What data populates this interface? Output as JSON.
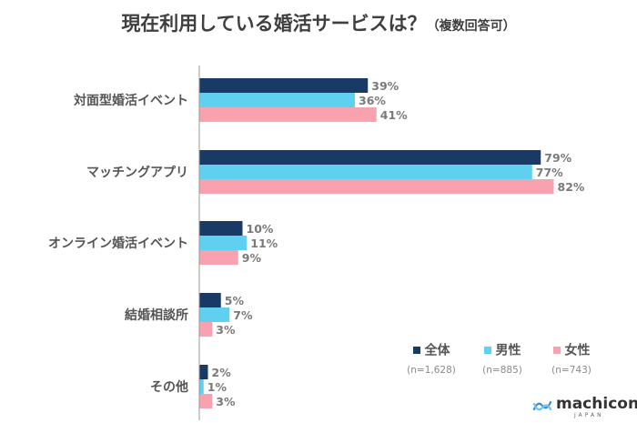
{
  "title": {
    "main": "現在利用している婚活サービスは？",
    "sub": "（複数回答可）"
  },
  "logo": {
    "name": "machicon",
    "sub": "JAPAN"
  },
  "colors": {
    "all": "#1a3a66",
    "male": "#5fd0ef",
    "female": "#f7a2ae",
    "axis": "#9a9a9a"
  },
  "chart_data": {
    "type": "bar",
    "orientation": "horizontal",
    "categories": [
      "対面型婚活イベント",
      "マッチングアプリ",
      "オンライン婚活イベント",
      "結婚相談所",
      "その他"
    ],
    "series": [
      {
        "name": "全体",
        "n_label": "(n=1,628)",
        "values": [
          39,
          79,
          10,
          5,
          2
        ]
      },
      {
        "name": "男性",
        "n_label": "(n=885)",
        "values": [
          36,
          77,
          11,
          7,
          1
        ]
      },
      {
        "name": "女性",
        "n_label": "(n=743)",
        "values": [
          41,
          82,
          9,
          3,
          3
        ]
      }
    ],
    "value_suffix": "%",
    "xlim": [
      0,
      100
    ],
    "legend_position": "bottom-right",
    "grid": false
  }
}
